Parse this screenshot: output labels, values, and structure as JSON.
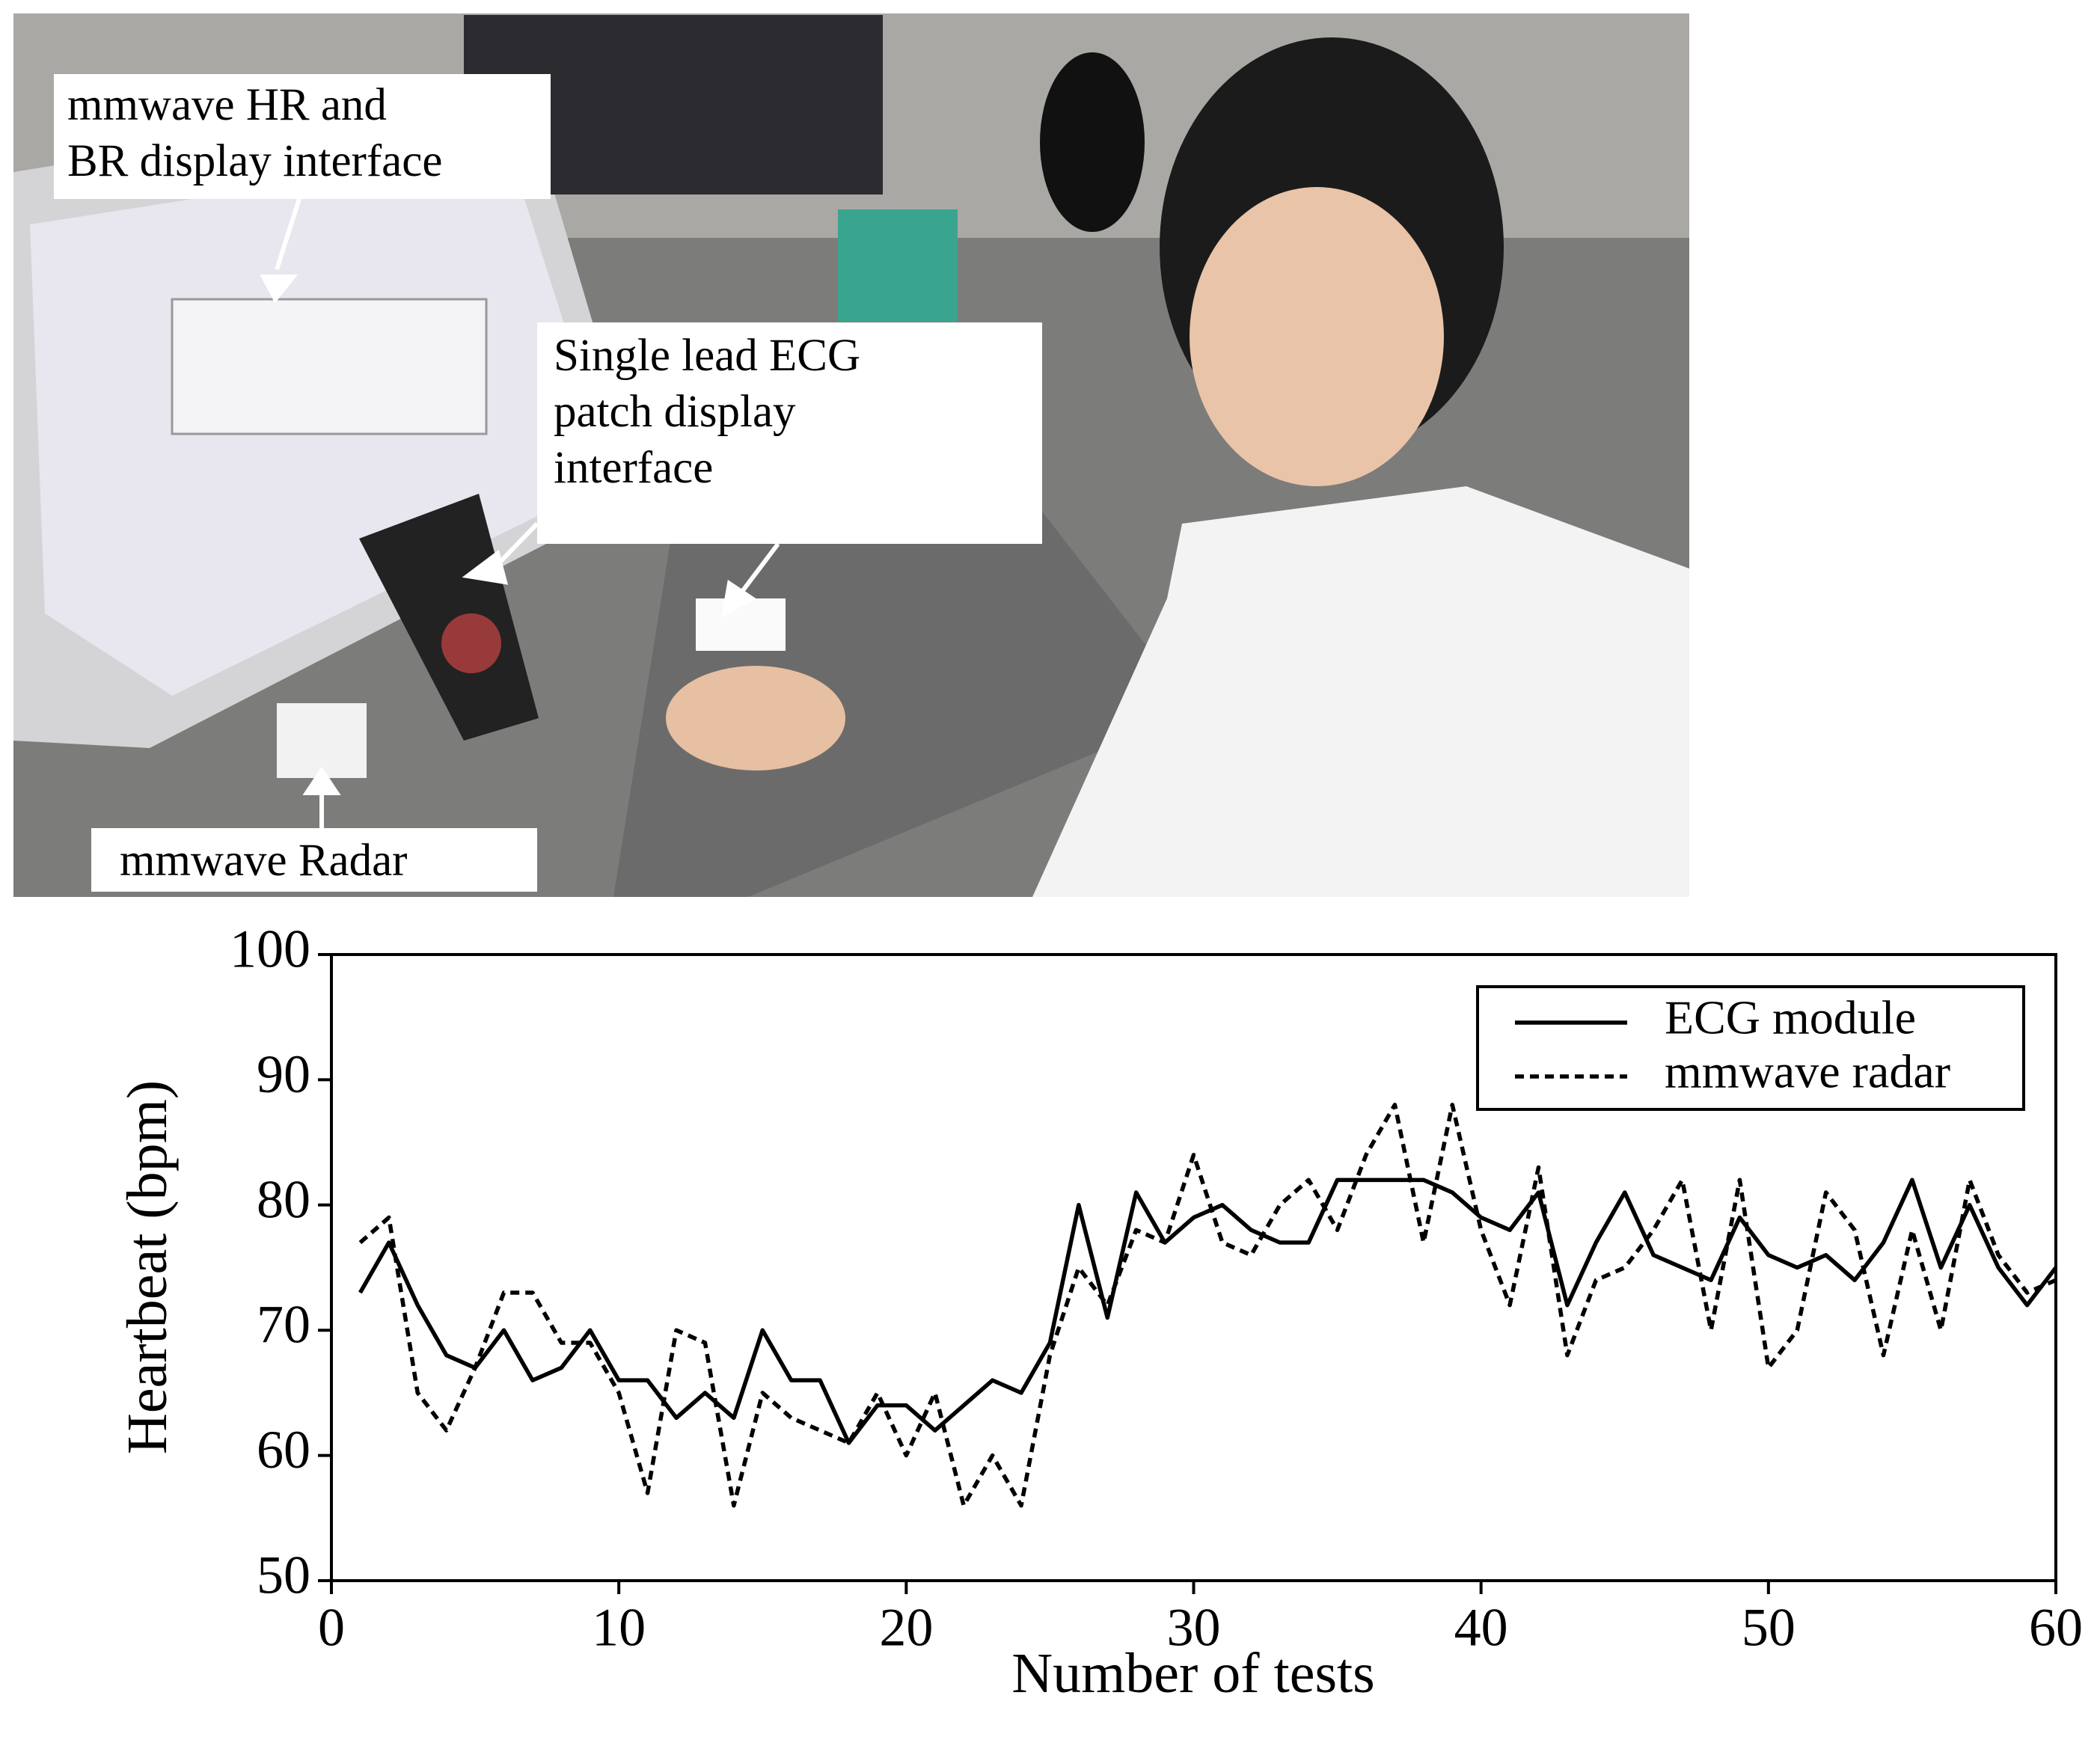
{
  "photo_labels": [
    {
      "lines": [
        "mmwave HR and",
        "BR display interface"
      ]
    },
    {
      "lines": [
        "Single lead ECG",
        "patch display",
        "interface"
      ]
    },
    {
      "lines": [
        "mmwave Radar"
      ]
    }
  ],
  "chart_data": {
    "type": "line",
    "x_label": "Number of tests",
    "y_label": "Heartbeat (bpm)",
    "x": [
      1,
      2,
      3,
      4,
      5,
      6,
      7,
      8,
      9,
      10,
      11,
      12,
      13,
      14,
      15,
      16,
      17,
      18,
      19,
      20,
      21,
      22,
      23,
      24,
      25,
      26,
      27,
      28,
      29,
      30,
      31,
      32,
      33,
      34,
      35,
      36,
      37,
      38,
      39,
      40,
      41,
      42,
      43,
      44,
      45,
      46,
      47,
      48,
      49,
      50,
      51,
      52,
      53,
      54,
      55,
      56,
      57,
      58,
      59,
      60
    ],
    "series": [
      {
        "name": "ECG module",
        "color": "#000000",
        "dash": false,
        "values": [
          73,
          77,
          72,
          68,
          67,
          70,
          66,
          67,
          70,
          66,
          66,
          63,
          65,
          63,
          70,
          66,
          66,
          61,
          64,
          64,
          62,
          64,
          66,
          65,
          69,
          80,
          71,
          81,
          77,
          79,
          80,
          78,
          77,
          77,
          82,
          82,
          82,
          82,
          81,
          79,
          78,
          81,
          72,
          77,
          81,
          76,
          75,
          74,
          79,
          76,
          75,
          76,
          74,
          77,
          82,
          75,
          80,
          75,
          72,
          75
        ]
      },
      {
        "name": "mmwave radar",
        "color": "#000000",
        "dash": true,
        "values": [
          77,
          79,
          65,
          62,
          67,
          73,
          73,
          69,
          69,
          65,
          57,
          70,
          69,
          56,
          65,
          63,
          62,
          61,
          65,
          60,
          65,
          56,
          60,
          56,
          68,
          75,
          72,
          78,
          77,
          84,
          77,
          76,
          80,
          82,
          78,
          84,
          88,
          77,
          88,
          78,
          72,
          83,
          68,
          74,
          75,
          78,
          82,
          70,
          82,
          67,
          70,
          81,
          78,
          68,
          78,
          70,
          82,
          76,
          73,
          74
        ]
      }
    ],
    "xlim": [
      0,
      60
    ],
    "xticks": [
      0,
      10,
      20,
      30,
      40,
      50,
      60
    ],
    "ylim": [
      50,
      100
    ],
    "yticks": [
      50,
      60,
      70,
      80,
      90,
      100
    ],
    "legend": "upper right",
    "grid": false
  }
}
